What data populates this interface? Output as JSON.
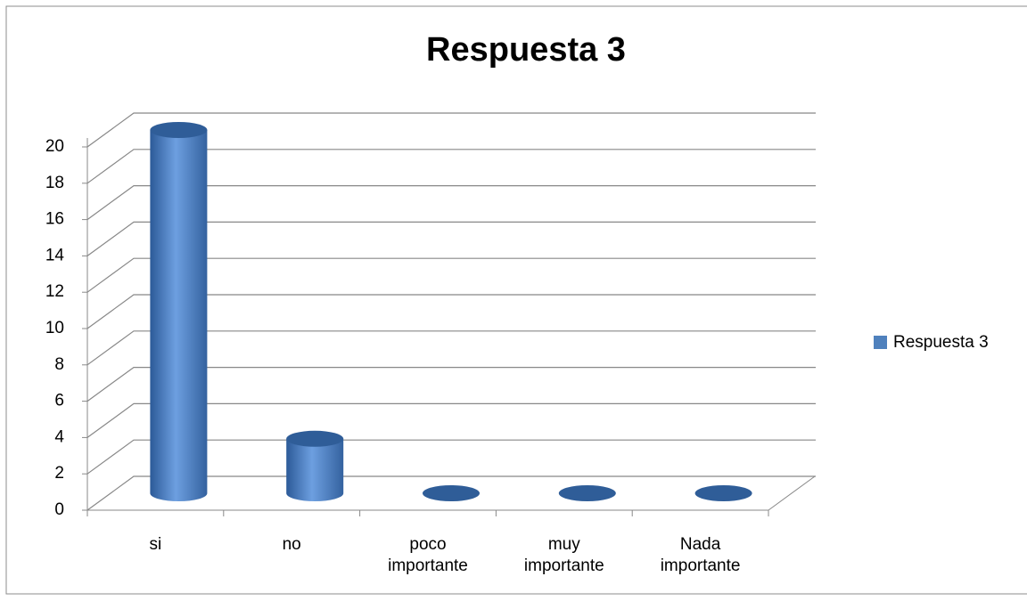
{
  "chart_data": {
    "type": "bar3d",
    "title": "Respuesta 3",
    "categories": [
      "si",
      "no",
      "poco importante",
      "muy importante",
      "Nada importante"
    ],
    "series": [
      {
        "name": "Respuesta 3",
        "color": "#4f81bd",
        "values": [
          20,
          3,
          0,
          0,
          0
        ]
      }
    ],
    "ylim": [
      0,
      20
    ],
    "yticks": [
      0,
      2,
      4,
      6,
      8,
      10,
      12,
      14,
      16,
      18,
      20
    ],
    "grid": true,
    "legend": "right"
  }
}
